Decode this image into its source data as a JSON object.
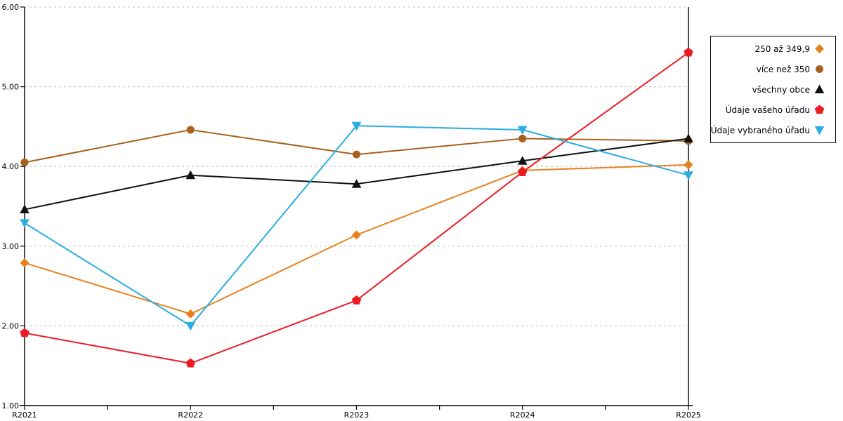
{
  "chart_data": {
    "type": "line",
    "title": "",
    "xlabel": "",
    "ylabel": "",
    "categories": [
      "R2021",
      "R2022",
      "R2023",
      "R2024",
      "R2025"
    ],
    "ylim": [
      1,
      6
    ],
    "yticks": [
      "1.00",
      "2.00",
      "3.00",
      "4.00",
      "5.00",
      "6.00"
    ],
    "grid": "horizontal-dashed",
    "legend_position": "right",
    "colors": {
      "axis": "#000000",
      "grid": "#c9c9c9",
      "background": "#ffffff"
    },
    "series": [
      {
        "name": "250 až 349,9",
        "marker": "diamond",
        "color": "#e8811c",
        "values": [
          2.79,
          2.15,
          3.14,
          3.95,
          4.02
        ]
      },
      {
        "name": "více než 350",
        "marker": "circle",
        "color": "#a8601c",
        "values": [
          4.05,
          4.46,
          4.15,
          4.35,
          4.32
        ]
      },
      {
        "name": "všechny obce",
        "marker": "triangle-up",
        "color": "#111111",
        "values": [
          3.46,
          3.89,
          3.78,
          4.07,
          4.35
        ]
      },
      {
        "name": "Údaje vašeho úřadu",
        "marker": "pentagon",
        "color": "#ed1c24",
        "values": [
          1.91,
          1.53,
          2.32,
          3.93,
          5.43
        ]
      },
      {
        "name": "Údaje vybraného úřadu",
        "marker": "triangle-down",
        "color": "#29ade3",
        "values": [
          3.29,
          2.0,
          4.51,
          4.46,
          3.89
        ]
      }
    ]
  }
}
